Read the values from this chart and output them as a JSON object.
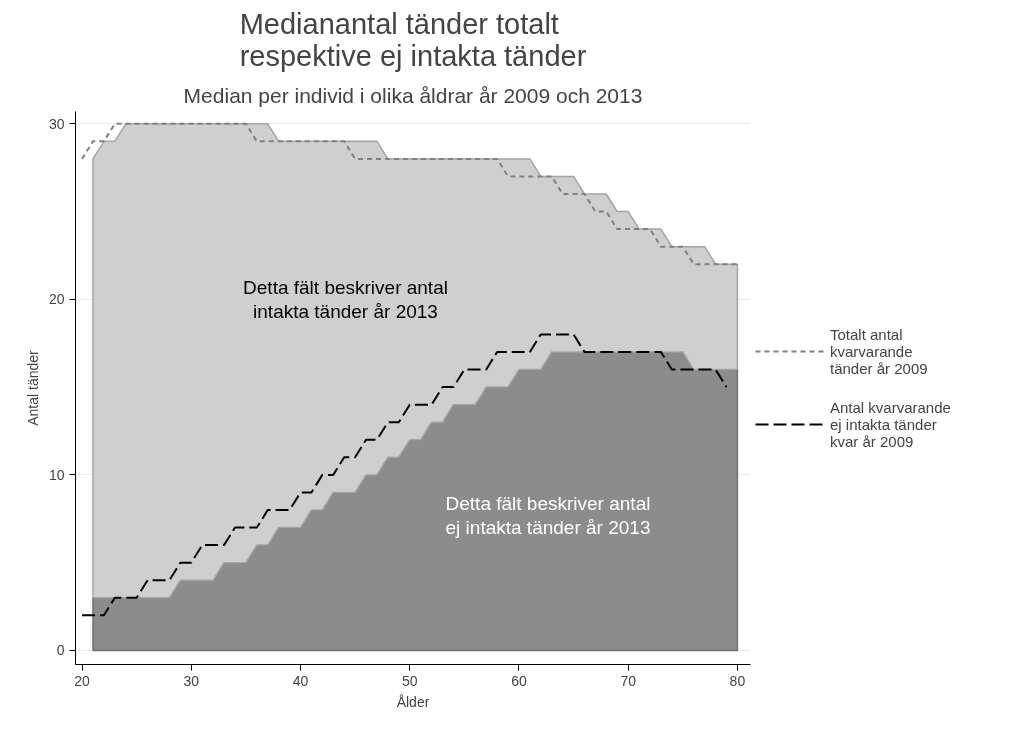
{
  "chart_data": {
    "type": "area",
    "stacked": true,
    "title": "Medianantal tänder totalt respektive ej intakta tänder",
    "subtitle": "Median per individ i olika åldrar år 2009 och 2013",
    "xlabel": "Ålder",
    "ylabel": "Antal tänder",
    "xlim": [
      19.4,
      81.2
    ],
    "ylim": [
      -0.8,
      30.7
    ],
    "xticks": [
      20,
      30,
      40,
      50,
      60,
      70,
      80
    ],
    "yticks": [
      0,
      10,
      20,
      30
    ],
    "grid": "y",
    "legend": "right",
    "annotations": [
      "Detta fält beskriver antal intakta tänder år 2013",
      "Detta fält beskriver antal ej intakta tänder år 2013"
    ],
    "series": [
      {
        "color": "#8c8c8c",
        "x": [
          21,
          22,
          23,
          24,
          25,
          26,
          27,
          28,
          29,
          30,
          31,
          32,
          33,
          34,
          35,
          36,
          37,
          38,
          39,
          40,
          41,
          42,
          43,
          44,
          45,
          46,
          47,
          48,
          49,
          50,
          51,
          52,
          53,
          54,
          55,
          56,
          57,
          58,
          59,
          60,
          61,
          62,
          63,
          64,
          65,
          66,
          67,
          68,
          69,
          70,
          71,
          72,
          73,
          74,
          75,
          76,
          77,
          78,
          79,
          80
        ],
        "values": [
          3,
          3,
          3,
          3,
          3,
          3,
          3,
          3,
          4,
          4,
          4,
          4,
          5,
          5,
          5,
          6,
          6,
          7,
          7,
          7,
          8,
          8,
          9,
          9,
          9,
          10,
          10,
          11,
          11,
          12,
          12,
          13,
          13,
          14,
          14,
          14,
          15,
          15,
          15,
          16,
          16,
          16,
          17,
          17,
          17,
          17,
          17,
          17,
          17,
          17,
          17,
          17,
          17,
          17,
          17,
          16,
          16,
          16,
          16,
          16
        ]
      },
      {
        "color": "#cfcfcf",
        "x": [
          21,
          22,
          23,
          24,
          25,
          26,
          27,
          28,
          29,
          30,
          31,
          32,
          33,
          34,
          35,
          36,
          37,
          38,
          39,
          40,
          41,
          42,
          43,
          44,
          45,
          46,
          47,
          48,
          49,
          50,
          51,
          52,
          53,
          54,
          55,
          56,
          57,
          58,
          59,
          60,
          61,
          62,
          63,
          64,
          65,
          66,
          67,
          68,
          69,
          70,
          71,
          72,
          73,
          74,
          75,
          76,
          77,
          78,
          79,
          80
        ],
        "values": [
          25,
          26,
          26,
          27,
          27,
          27,
          27,
          27,
          26,
          26,
          26,
          26,
          25,
          25,
          25,
          24,
          24,
          22,
          22,
          22,
          21,
          21,
          20,
          20,
          20,
          19,
          19,
          17,
          17,
          16,
          16,
          15,
          15,
          14,
          14,
          14,
          13,
          13,
          13,
          12,
          12,
          11,
          10,
          10,
          10,
          9,
          9,
          9,
          8,
          8,
          7,
          7,
          7,
          6,
          6,
          7,
          7,
          6,
          6,
          6
        ]
      },
      {
        "type": "line",
        "name": "Totalt antal kvarvarande tänder år 2009",
        "color": "#808080",
        "line_style": "dotted",
        "x": [
          20,
          21,
          22,
          23,
          24,
          25,
          26,
          27,
          28,
          29,
          30,
          31,
          32,
          33,
          34,
          35,
          36,
          37,
          38,
          39,
          40,
          41,
          42,
          43,
          44,
          45,
          46,
          47,
          48,
          49,
          50,
          51,
          52,
          53,
          54,
          55,
          56,
          57,
          58,
          59,
          60,
          61,
          62,
          63,
          64,
          65,
          66,
          67,
          68,
          69,
          70,
          71,
          72,
          73,
          74,
          75,
          76,
          77,
          78,
          79,
          80
        ],
        "values": [
          28,
          29,
          29,
          30,
          30,
          30,
          30,
          30,
          30,
          30,
          30,
          30,
          30,
          30,
          30,
          30,
          29,
          29,
          29,
          29,
          29,
          29,
          29,
          29,
          29,
          28,
          28,
          28,
          28,
          28,
          28,
          28,
          28,
          28,
          28,
          28,
          28,
          28,
          28,
          27,
          27,
          27,
          27,
          27,
          26,
          26,
          26,
          25,
          25,
          24,
          24,
          24,
          24,
          23,
          23,
          23,
          22,
          22,
          22,
          22,
          22
        ]
      },
      {
        "type": "line",
        "name": "Antal kvarvarande ej intakta tänder kvar år 2009",
        "color": "#000000",
        "line_style": "dashed",
        "x": [
          20,
          21,
          22,
          23,
          24,
          25,
          26,
          27,
          28,
          29,
          30,
          31,
          32,
          33,
          34,
          35,
          36,
          37,
          38,
          39,
          40,
          41,
          42,
          43,
          44,
          45,
          46,
          47,
          48,
          49,
          50,
          51,
          52,
          53,
          54,
          55,
          56,
          57,
          58,
          59,
          60,
          61,
          62,
          63,
          64,
          65,
          66,
          67,
          68,
          69,
          70,
          71,
          72,
          73,
          74,
          75,
          76,
          77,
          78,
          79
        ],
        "values": [
          2,
          2,
          2,
          3,
          3,
          3,
          4,
          4,
          4,
          5,
          5,
          6,
          6,
          6,
          7,
          7,
          7,
          8,
          8,
          8,
          9,
          9,
          10,
          10,
          11,
          11,
          12,
          12,
          13,
          13,
          14,
          14,
          14,
          15,
          15,
          16,
          16,
          16,
          17,
          17,
          17,
          17,
          18,
          18,
          18,
          18,
          17,
          17,
          17,
          17,
          17,
          17,
          17,
          17,
          16,
          16,
          16,
          16,
          16,
          15
        ]
      }
    ]
  }
}
